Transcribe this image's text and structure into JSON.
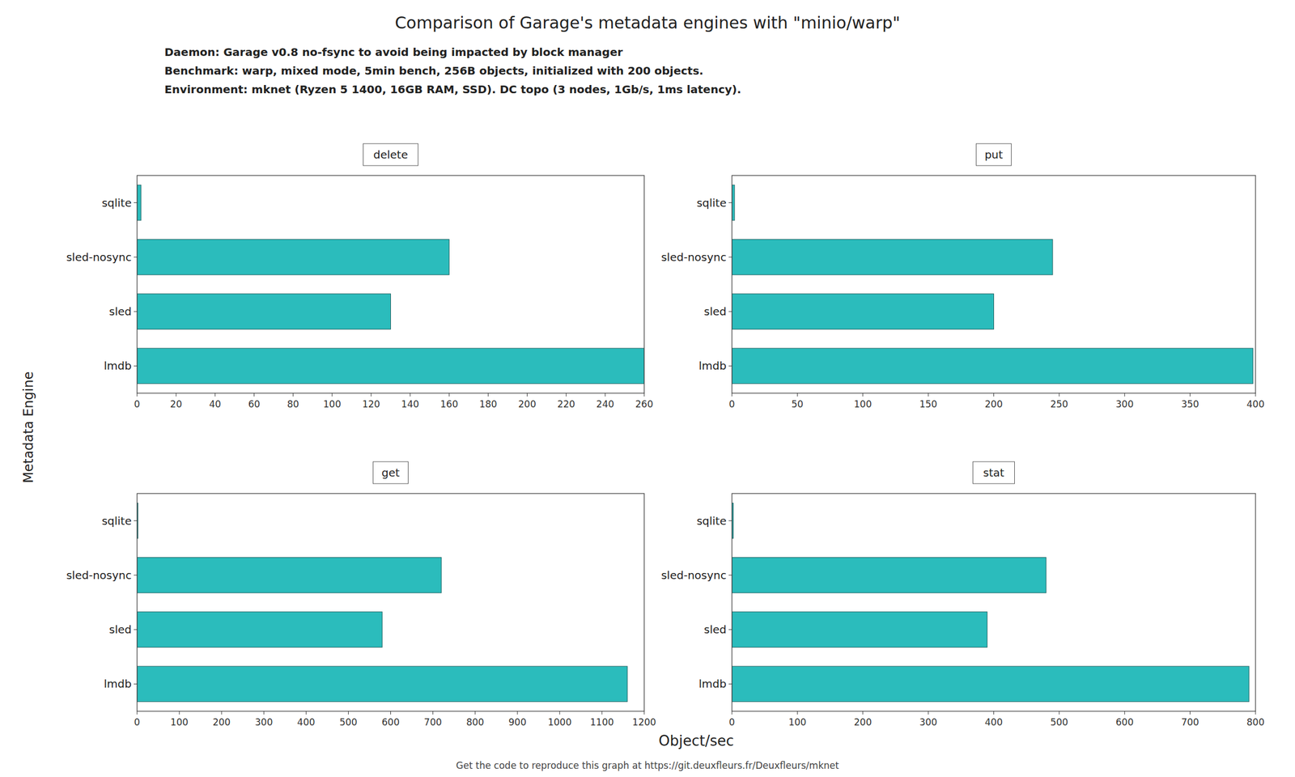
{
  "title": "Comparison of Garage's metadata engines with \"minio/warp\"",
  "subtitle": [
    "Daemon: Garage v0.8 no-fsync to avoid being impacted by block manager",
    "Benchmark: warp, mixed mode, 5min bench, 256B objects, initialized with 200 objects.",
    "Environment: mknet (Ryzen 5 1400, 16GB RAM, SSD). DC topo (3 nodes, 1Gb/s, 1ms latency)."
  ],
  "footer": "Get the code to reproduce this graph at https://git.deuxfleurs.fr/Deuxfleurs/mknet",
  "xlabel": "Object/sec",
  "ylabel": "Metadata Engine",
  "chart_data": [
    {
      "type": "bar",
      "orientation": "horizontal",
      "title": "delete",
      "categories": [
        "lmdb",
        "sled",
        "sled-nosync",
        "sqlite"
      ],
      "values": [
        260,
        130,
        160,
        2
      ],
      "color": "#2BBCBC",
      "grid": false,
      "xlim": [
        0,
        260
      ],
      "xticks": [
        0,
        20,
        40,
        60,
        80,
        100,
        120,
        140,
        160,
        180,
        200,
        220,
        240,
        260
      ]
    },
    {
      "type": "bar",
      "orientation": "horizontal",
      "title": "put",
      "categories": [
        "lmdb",
        "sled",
        "sled-nosync",
        "sqlite"
      ],
      "values": [
        398,
        200,
        245,
        2
      ],
      "color": "#2BBCBC",
      "grid": false,
      "xlim": [
        0,
        400
      ],
      "xticks": [
        0,
        50,
        100,
        150,
        200,
        250,
        300,
        350,
        400
      ]
    },
    {
      "type": "bar",
      "orientation": "horizontal",
      "title": "get",
      "categories": [
        "lmdb",
        "sled",
        "sled-nosync",
        "sqlite"
      ],
      "values": [
        1160,
        580,
        720,
        2
      ],
      "color": "#2BBCBC",
      "grid": false,
      "xlim": [
        0,
        1200
      ],
      "xticks": [
        0,
        100,
        200,
        300,
        400,
        500,
        600,
        700,
        800,
        900,
        1000,
        1100,
        1200
      ]
    },
    {
      "type": "bar",
      "orientation": "horizontal",
      "title": "stat",
      "categories": [
        "lmdb",
        "sled",
        "sled-nosync",
        "sqlite"
      ],
      "values": [
        790,
        390,
        480,
        2
      ],
      "color": "#2BBCBC",
      "grid": false,
      "xlim": [
        0,
        800
      ],
      "xticks": [
        0,
        100,
        200,
        300,
        400,
        500,
        600,
        700,
        800
      ]
    }
  ]
}
